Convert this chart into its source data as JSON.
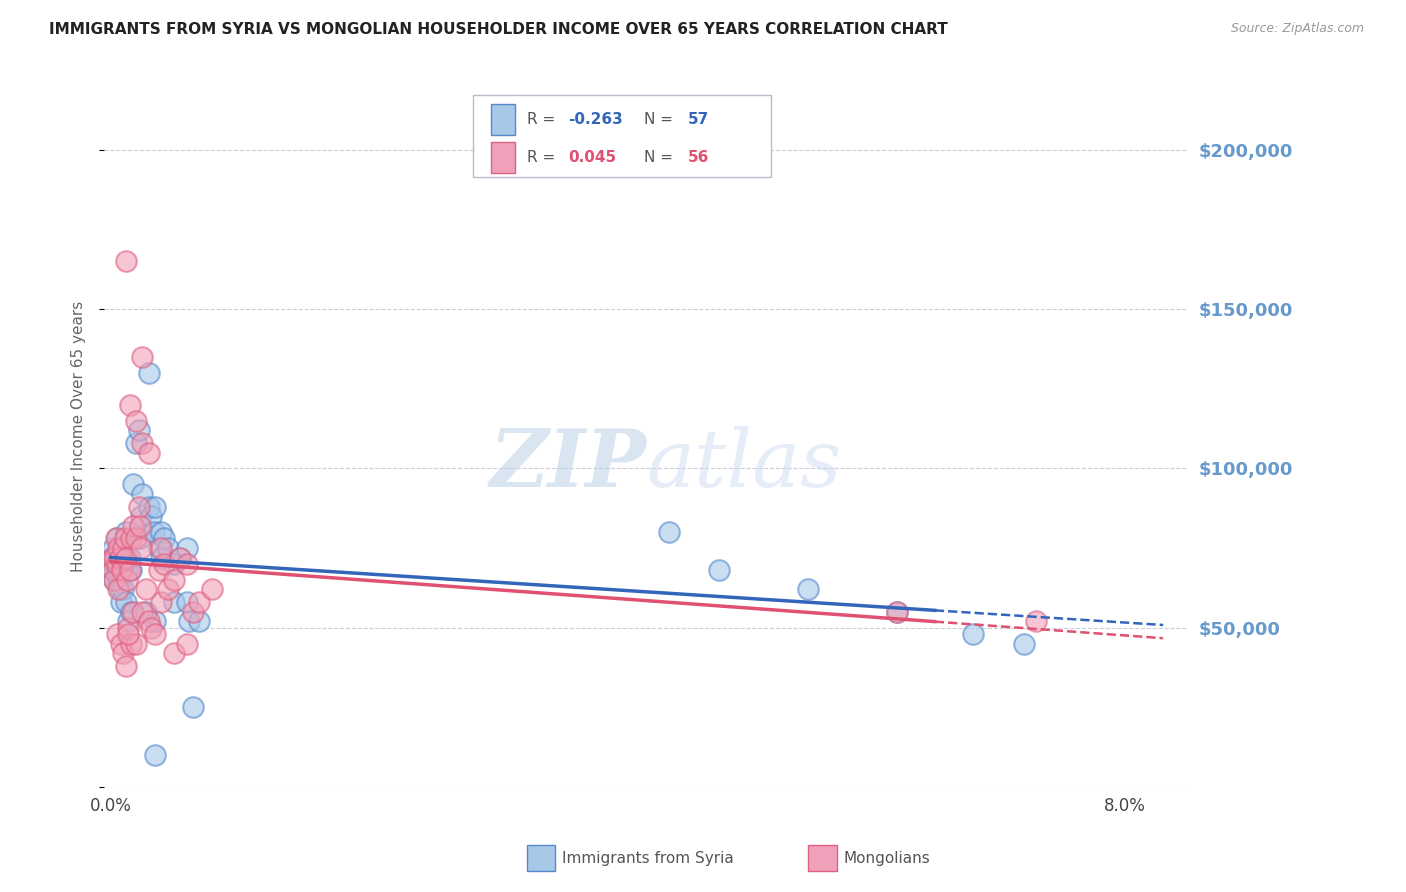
{
  "title": "IMMIGRANTS FROM SYRIA VS MONGOLIAN HOUSEHOLDER INCOME OVER 65 YEARS CORRELATION CHART",
  "source": "Source: ZipAtlas.com",
  "ylabel": "Householder Income Over 65 years",
  "y_min": 0,
  "y_max": 220000,
  "x_min": -0.0005,
  "x_max": 0.085,
  "legend1_r": "-0.263",
  "legend1_n": "57",
  "legend2_r": "0.045",
  "legend2_n": "56",
  "legend_bottom1": "Immigrants from Syria",
  "legend_bottom2": "Mongolians",
  "syria_color": "#A8C8E8",
  "mongolia_color": "#F0A0B8",
  "syria_edge_color": "#5588CC",
  "mongolia_edge_color": "#E06080",
  "syria_line_color": "#3366BB",
  "mongolia_line_color": "#E05070",
  "background_color": "#FFFFFF",
  "grid_color": "#CCCCDD",
  "right_axis_color": "#6699CC",
  "watermark": "ZIPatlas",
  "syria_scatter": [
    [
      0.0001,
      72000
    ],
    [
      0.0002,
      68000
    ],
    [
      0.0002,
      75000
    ],
    [
      0.0003,
      70000
    ],
    [
      0.0003,
      65000
    ],
    [
      0.0004,
      72000
    ],
    [
      0.0005,
      78000
    ],
    [
      0.0005,
      68000
    ],
    [
      0.0006,
      74000
    ],
    [
      0.0006,
      65000
    ],
    [
      0.0007,
      70000
    ],
    [
      0.0007,
      62000
    ],
    [
      0.0008,
      68000
    ],
    [
      0.0008,
      58000
    ],
    [
      0.0009,
      72000
    ],
    [
      0.001,
      75000
    ],
    [
      0.001,
      62000
    ],
    [
      0.0012,
      80000
    ],
    [
      0.0012,
      58000
    ],
    [
      0.0013,
      68000
    ],
    [
      0.0014,
      52000
    ],
    [
      0.0015,
      72000
    ],
    [
      0.0016,
      68000
    ],
    [
      0.0016,
      55000
    ],
    [
      0.0018,
      95000
    ],
    [
      0.002,
      108000
    ],
    [
      0.0022,
      112000
    ],
    [
      0.0023,
      78000
    ],
    [
      0.0024,
      85000
    ],
    [
      0.0025,
      92000
    ],
    [
      0.003,
      88000
    ],
    [
      0.003,
      130000
    ],
    [
      0.0032,
      85000
    ],
    [
      0.0034,
      80000
    ],
    [
      0.0035,
      88000
    ],
    [
      0.0035,
      52000
    ],
    [
      0.0038,
      75000
    ],
    [
      0.004,
      80000
    ],
    [
      0.004,
      72000
    ],
    [
      0.0042,
      78000
    ],
    [
      0.0045,
      75000
    ],
    [
      0.005,
      70000
    ],
    [
      0.005,
      58000
    ],
    [
      0.0055,
      72000
    ],
    [
      0.006,
      75000
    ],
    [
      0.006,
      58000
    ],
    [
      0.0062,
      52000
    ],
    [
      0.0065,
      25000
    ],
    [
      0.007,
      52000
    ],
    [
      0.0035,
      10000
    ],
    [
      0.044,
      80000
    ],
    [
      0.048,
      68000
    ],
    [
      0.055,
      62000
    ],
    [
      0.062,
      55000
    ],
    [
      0.068,
      48000
    ],
    [
      0.072,
      45000
    ],
    [
      0.0028,
      55000
    ]
  ],
  "mongolia_scatter": [
    [
      0.0001,
      72000
    ],
    [
      0.0002,
      68000
    ],
    [
      0.0003,
      72000
    ],
    [
      0.0003,
      65000
    ],
    [
      0.0004,
      78000
    ],
    [
      0.0005,
      70000
    ],
    [
      0.0005,
      48000
    ],
    [
      0.0006,
      75000
    ],
    [
      0.0006,
      62000
    ],
    [
      0.0007,
      72000
    ],
    [
      0.0008,
      45000
    ],
    [
      0.0009,
      68000
    ],
    [
      0.001,
      75000
    ],
    [
      0.001,
      42000
    ],
    [
      0.0011,
      78000
    ],
    [
      0.0012,
      72000
    ],
    [
      0.0012,
      38000
    ],
    [
      0.0013,
      65000
    ],
    [
      0.0014,
      50000
    ],
    [
      0.0015,
      68000
    ],
    [
      0.0015,
      120000
    ],
    [
      0.0016,
      78000
    ],
    [
      0.0016,
      45000
    ],
    [
      0.0018,
      82000
    ],
    [
      0.0018,
      55000
    ],
    [
      0.002,
      78000
    ],
    [
      0.002,
      115000
    ],
    [
      0.002,
      45000
    ],
    [
      0.0022,
      88000
    ],
    [
      0.0023,
      82000
    ],
    [
      0.0024,
      75000
    ],
    [
      0.0025,
      108000
    ],
    [
      0.0025,
      55000
    ],
    [
      0.003,
      105000
    ],
    [
      0.003,
      52000
    ],
    [
      0.0032,
      50000
    ],
    [
      0.0035,
      48000
    ],
    [
      0.0038,
      68000
    ],
    [
      0.004,
      58000
    ],
    [
      0.004,
      75000
    ],
    [
      0.0042,
      70000
    ],
    [
      0.0045,
      62000
    ],
    [
      0.005,
      65000
    ],
    [
      0.005,
      42000
    ],
    [
      0.0055,
      72000
    ],
    [
      0.006,
      70000
    ],
    [
      0.006,
      45000
    ],
    [
      0.0065,
      55000
    ],
    [
      0.007,
      58000
    ],
    [
      0.008,
      62000
    ],
    [
      0.0012,
      165000
    ],
    [
      0.0025,
      135000
    ],
    [
      0.0014,
      48000
    ],
    [
      0.0028,
      62000
    ],
    [
      0.062,
      55000
    ],
    [
      0.073,
      52000
    ]
  ]
}
